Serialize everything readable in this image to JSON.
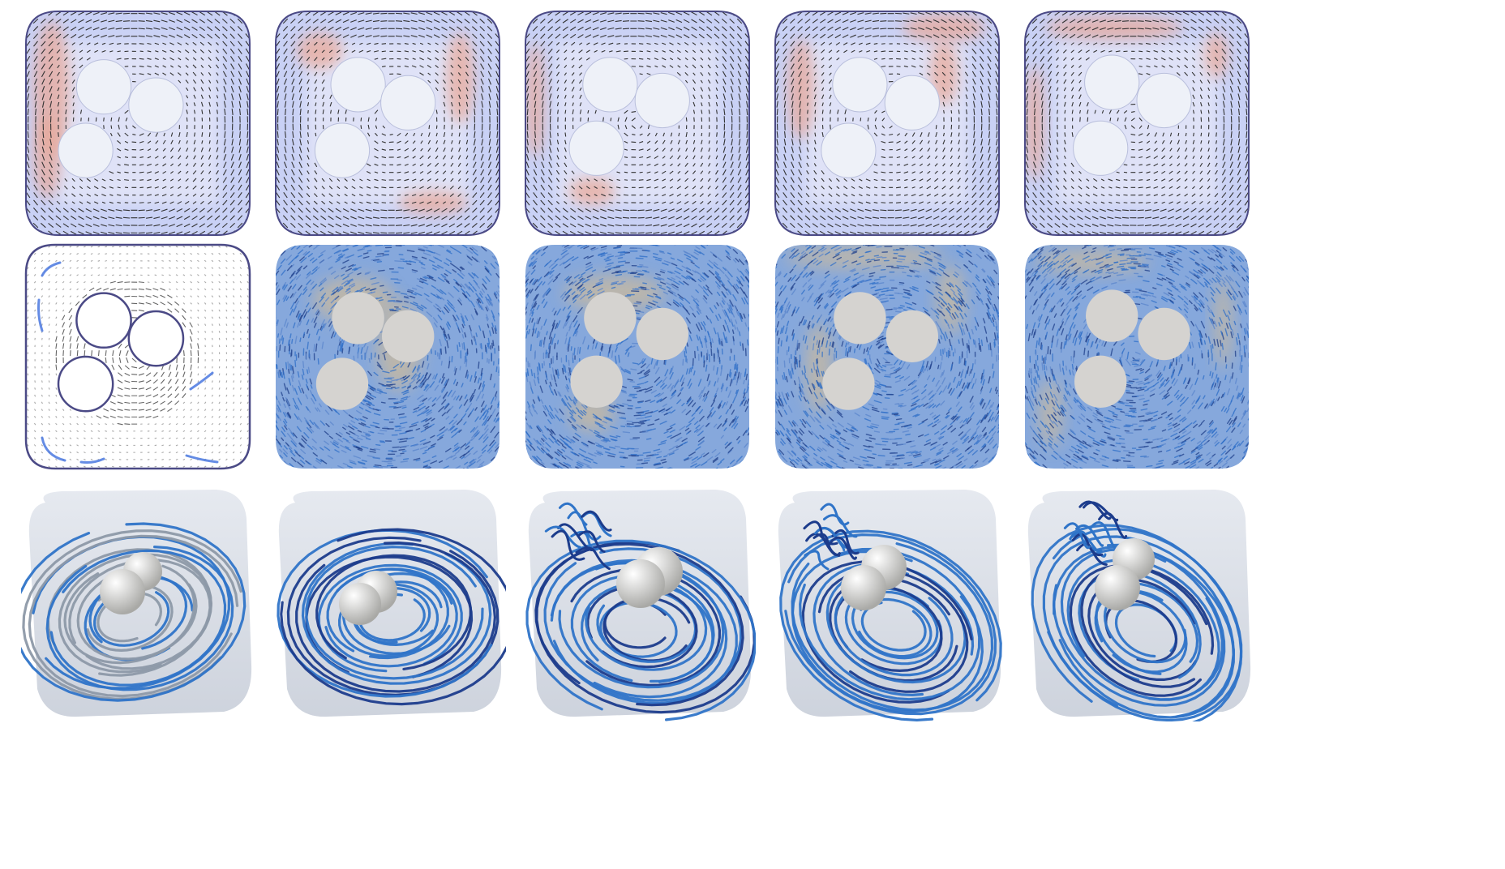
{
  "figure": {
    "rows": [
      {
        "id": "velocity-arrows-heatmap"
      },
      {
        "id": "dense-vector-field"
      },
      {
        "id": "3d-streamlines"
      }
    ],
    "columns": 5,
    "colors": {
      "field_blue": "#c9d1f5",
      "field_red": "#e8a99a",
      "domain_outline": "#4b4a86",
      "cylinder_fill": "#eef1f8",
      "arrow": "#333333",
      "glyph_blue": "#2f6fc8",
      "glyph_dark": "#1f3f8a",
      "glyph_tan": "#c8b9a0",
      "dense_bg": "#86a8dc",
      "obstacle_gray": "#d5d3d0",
      "container_gray": "#d6dbe4",
      "stream_blue": "#2f74c8",
      "stream_navy": "#1c3c8c",
      "stream_gray": "#8d99a8",
      "sphere": "#d8d8d6"
    },
    "icons": [
      "cylinder-obstacle",
      "vortex-arrow",
      "streamline",
      "sphere-obstacle"
    ]
  }
}
